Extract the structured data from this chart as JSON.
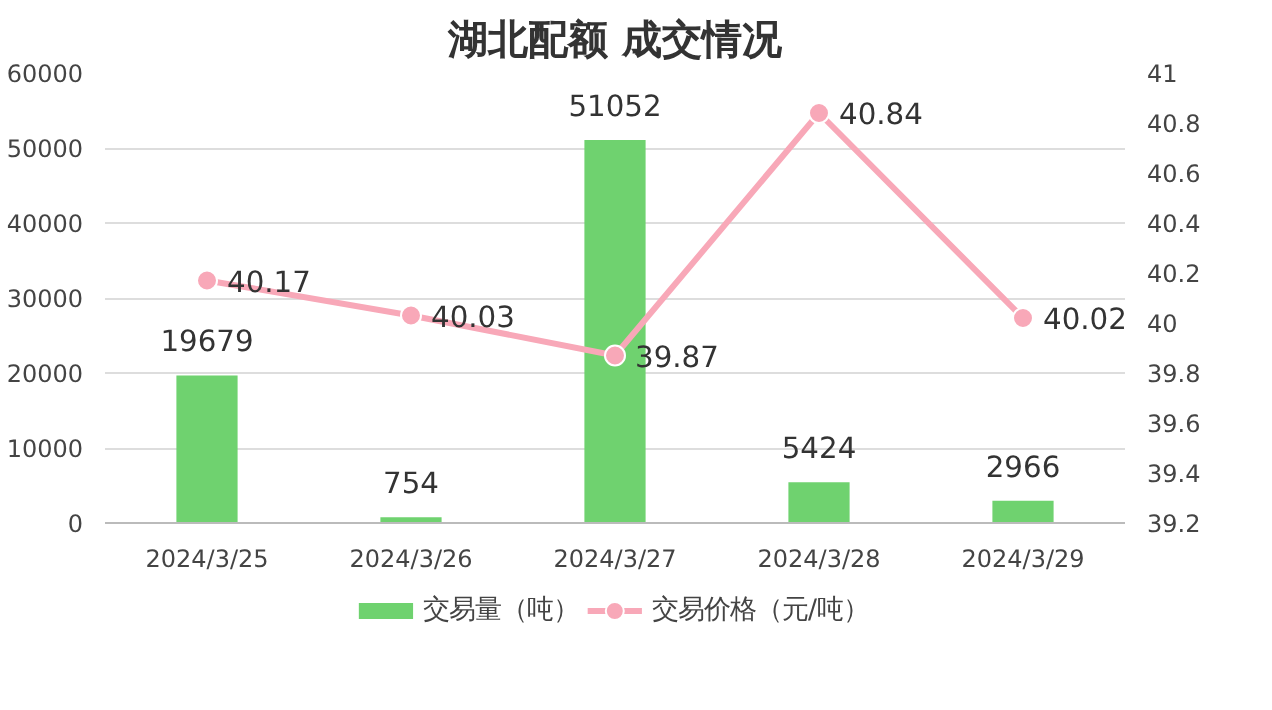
{
  "chart_data": {
    "type": "bar",
    "title": "湖北配额 成交情况",
    "categories": [
      "2024/3/25",
      "2024/3/26",
      "2024/3/27",
      "2024/3/28",
      "2024/3/29"
    ],
    "series": [
      {
        "name": "交易量（吨）",
        "color": "#6fd26f",
        "values": [
          19679,
          754,
          51052,
          5424,
          2966
        ]
      },
      {
        "name": "交易价格（元/吨）",
        "type": "line",
        "axis": "y2",
        "color": "#f8a8b8",
        "values": [
          40.17,
          40.03,
          39.87,
          40.84,
          40.02
        ]
      }
    ],
    "ylim": [
      0,
      60000
    ],
    "yticks": [
      0,
      10000,
      20000,
      30000,
      40000,
      50000,
      60000
    ],
    "y2lim": [
      39.2,
      41
    ],
    "y2ticks": [
      39.2,
      39.4,
      39.6,
      39.8,
      40,
      40.2,
      40.4,
      40.6,
      40.8,
      41
    ],
    "grid": "y",
    "legend": "bottom",
    "marker": "circle",
    "data_labels": true
  }
}
